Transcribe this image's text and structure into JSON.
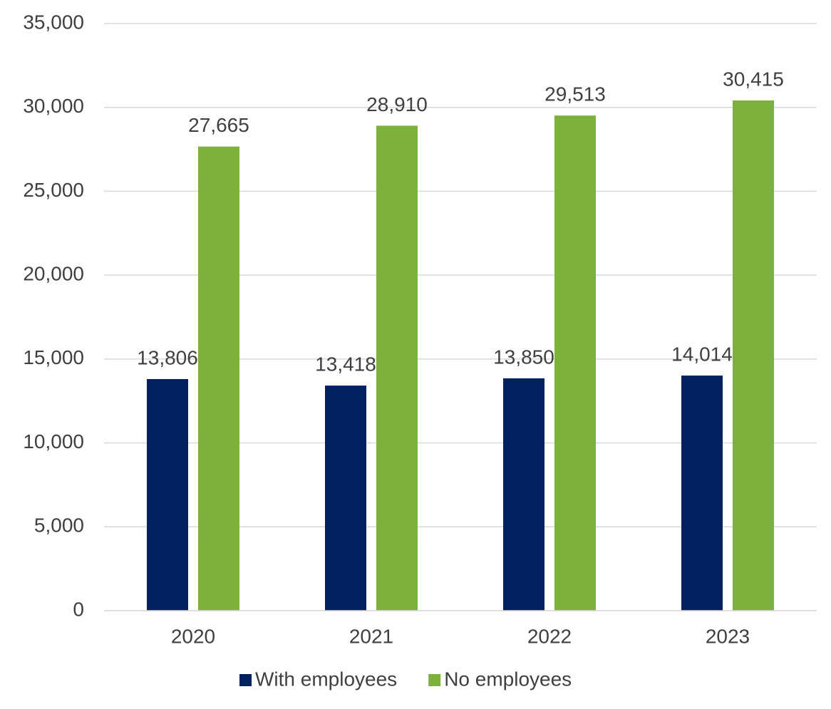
{
  "chart_data": {
    "type": "bar",
    "categories": [
      "2020",
      "2021",
      "2022",
      "2023"
    ],
    "series": [
      {
        "name": "With employees",
        "color": "#002060",
        "values": [
          13806,
          13418,
          13850,
          14014
        ],
        "value_labels": [
          "13,806",
          "13,418",
          "13,850",
          "14,014"
        ]
      },
      {
        "name": "No employees",
        "color": "#7cb23b",
        "values": [
          27665,
          28910,
          29513,
          30415
        ],
        "value_labels": [
          "27,665",
          "28,910",
          "29,513",
          "30,415"
        ]
      }
    ],
    "ylim": [
      0,
      35000
    ],
    "yticks": [
      0,
      {
        "value": 5000,
        "label": "5,000"
      },
      {
        "value": 10000,
        "label": "10,000"
      },
      {
        "value": 15000,
        "label": "15,000"
      },
      {
        "value": 20000,
        "label": "20,000"
      },
      {
        "value": 25000,
        "label": "25,000"
      },
      {
        "value": 30000,
        "label": "30,000"
      },
      {
        "value": 35000,
        "label": "35,000"
      }
    ],
    "grid": true,
    "legend": "bottom"
  }
}
